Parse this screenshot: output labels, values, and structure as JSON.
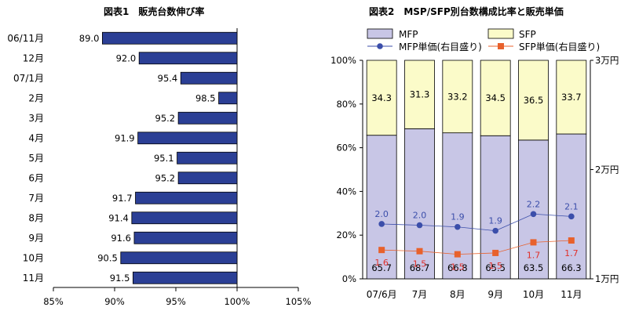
{
  "chart_data": [
    {
      "type": "bar",
      "orientation": "horizontal",
      "title": "図表1　販売台数伸び率",
      "categories": [
        "06/11月",
        "12月",
        "07/1月",
        "2月",
        "3月",
        "4月",
        "5月",
        "6月",
        "7月",
        "8月",
        "9月",
        "10月",
        "11月"
      ],
      "values": [
        89.0,
        92.0,
        95.4,
        98.5,
        95.2,
        91.9,
        95.1,
        95.2,
        91.7,
        91.4,
        91.6,
        90.5,
        91.5
      ],
      "value_labels": [
        "89.0",
        "92.0",
        "95.4",
        "98.5",
        "95.2",
        "91.9",
        "95.1",
        "95.2",
        "91.7",
        "91.4",
        "91.6",
        "90.5",
        "91.5"
      ],
      "xlim": [
        85,
        105
      ],
      "bar_origin": 100,
      "xticks": [
        "85%",
        "90%",
        "95%",
        "100%",
        "105%"
      ],
      "bar_color": "#2b3f95"
    },
    {
      "type": "bar",
      "stacked": true,
      "title": "図表2　MSP/SFP別台数構成比率と販売単価",
      "categories": [
        "07/6月",
        "7月",
        "8月",
        "9月",
        "10月",
        "11月"
      ],
      "series": [
        {
          "name": "MFP",
          "values": [
            65.7,
            68.7,
            66.8,
            65.5,
            63.5,
            66.3
          ],
          "labels": [
            "65.7",
            "68.7",
            "66.8",
            "65.5",
            "63.5",
            "66.3"
          ],
          "color": "#c8c6e6"
        },
        {
          "name": "SFP",
          "values": [
            34.3,
            31.3,
            33.2,
            34.5,
            36.5,
            33.7
          ],
          "labels": [
            "34.3",
            "31.3",
            "33.2",
            "34.5",
            "36.5",
            "33.7"
          ],
          "color": "#fbfbc9"
        }
      ],
      "line_series": [
        {
          "name": "MFP単価(右目盛り)",
          "values": [
            2.0,
            2.0,
            1.9,
            1.9,
            2.2,
            2.1
          ],
          "labels": [
            "2.0",
            "2.0",
            "1.9",
            "1.9",
            "2.2",
            "2.1"
          ],
          "color": "#3b4eaa",
          "marker": "circle"
        },
        {
          "name": "SFP単価(右目盛り)",
          "values": [
            1.6,
            1.5,
            1.5,
            1.5,
            1.7,
            1.7
          ],
          "labels": [
            "1.6",
            "1.5",
            "1.5",
            "1.5",
            "1.7",
            "1.7"
          ],
          "color": "#e8612c",
          "marker": "square"
        }
      ],
      "line_y_positions": [
        1.502,
        1.491,
        1.475,
        1.44,
        1.593,
        1.571
      ],
      "line2_y_positions": [
        1.264,
        1.253,
        1.225,
        1.237,
        1.334,
        1.351
      ],
      "ylim_left": [
        0,
        100
      ],
      "yticks_left": [
        "0%",
        "20%",
        "40%",
        "60%",
        "80%",
        "100%"
      ],
      "ylim_right": [
        1,
        3
      ],
      "yticks_right": [
        "1万円",
        "2万円",
        "3万円"
      ]
    }
  ]
}
